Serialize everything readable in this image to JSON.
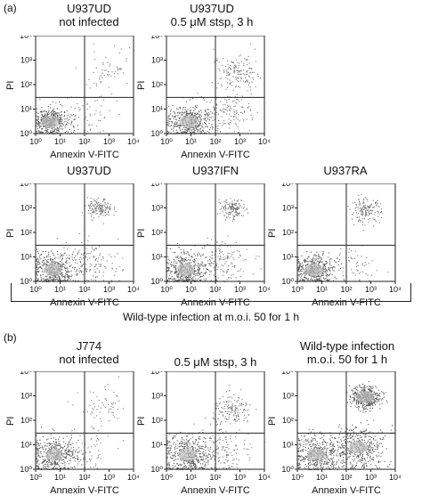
{
  "labels": {
    "panel_a": "(a)",
    "panel_b": "(b)",
    "caption_a": "Wild-type infection at m.o.i. 50 for 1 h"
  },
  "chart_data": [
    {
      "type": "scatter",
      "title": "U937UD\nnot infected",
      "xlabel": "Annexin V-FITC",
      "ylabel": "PI",
      "xscale": "log",
      "yscale": "log",
      "xlim": [
        1,
        10000
      ],
      "ylim": [
        1,
        10000
      ],
      "x_ticks": [
        "10⁰",
        "10¹",
        "10²",
        "10³",
        "10⁴"
      ],
      "y_ticks": [
        "10⁰",
        "10¹",
        "10²",
        "10³",
        "10⁴"
      ],
      "quadrant_gate": {
        "x": 100,
        "y": 30
      },
      "populations": [
        {
          "cx": 4,
          "cy": 3,
          "spread": 0.35,
          "density": "high"
        },
        {
          "cx": 800,
          "cy": 400,
          "spread": 0.6,
          "density": "low"
        },
        {
          "cx": 150,
          "cy": 5,
          "spread": 0.6,
          "density": "low"
        }
      ]
    },
    {
      "type": "scatter",
      "title": "U937UD\n0.5 μM stsp, 3 h",
      "xlabel": "Annexin V-FITC",
      "ylabel": "PI",
      "xscale": "log",
      "yscale": "log",
      "xlim": [
        1,
        10000
      ],
      "ylim": [
        1,
        10000
      ],
      "x_ticks": [
        "10⁰",
        "10¹",
        "10²",
        "10³",
        "10⁴"
      ],
      "y_ticks": [
        "10⁰",
        "10¹",
        "10²",
        "10³",
        "10⁴"
      ],
      "quadrant_gate": {
        "x": 100,
        "y": 30
      },
      "populations": [
        {
          "cx": 8,
          "cy": 3,
          "spread": 0.45,
          "density": "high"
        },
        {
          "cx": 800,
          "cy": 300,
          "spread": 0.5,
          "density": "medium"
        },
        {
          "cx": 200,
          "cy": 8,
          "spread": 0.6,
          "density": "medium"
        }
      ]
    },
    {
      "type": "scatter",
      "title": "U937UD",
      "xlabel": "Annexin V-FITC",
      "ylabel": "PI",
      "xscale": "log",
      "yscale": "log",
      "xlim": [
        1,
        10000
      ],
      "ylim": [
        1,
        10000
      ],
      "x_ticks": [
        "10⁰",
        "10¹",
        "10²",
        "10³",
        "10⁴"
      ],
      "y_ticks": [
        "10⁰",
        "10¹",
        "10²",
        "10³",
        "10⁴"
      ],
      "quadrant_gate": {
        "x": 100,
        "y": 30
      },
      "populations": [
        {
          "cx": 5,
          "cy": 3,
          "spread": 0.45,
          "density": "high"
        },
        {
          "cx": 400,
          "cy": 1000,
          "spread": 0.25,
          "density": "medium"
        },
        {
          "cx": 150,
          "cy": 6,
          "spread": 0.6,
          "density": "medium"
        }
      ]
    },
    {
      "type": "scatter",
      "title": "U937IFN",
      "xlabel": "Annexin V-FITC",
      "ylabel": "PI",
      "xscale": "log",
      "yscale": "log",
      "xlim": [
        1,
        10000
      ],
      "ylim": [
        1,
        10000
      ],
      "x_ticks": [
        "10⁰",
        "10¹",
        "10²",
        "10³",
        "10⁴"
      ],
      "y_ticks": [
        "10⁰",
        "10¹",
        "10²",
        "10³",
        "10⁴"
      ],
      "quadrant_gate": {
        "x": 100,
        "y": 30
      },
      "populations": [
        {
          "cx": 6,
          "cy": 3,
          "spread": 0.45,
          "density": "high"
        },
        {
          "cx": 500,
          "cy": 900,
          "spread": 0.25,
          "density": "medium"
        },
        {
          "cx": 200,
          "cy": 6,
          "spread": 0.55,
          "density": "medium"
        }
      ]
    },
    {
      "type": "scatter",
      "title": "U937RA",
      "xlabel": "Annexin V-FITC",
      "ylabel": "PI",
      "xscale": "log",
      "yscale": "log",
      "xlim": [
        1,
        10000
      ],
      "ylim": [
        1,
        10000
      ],
      "x_ticks": [
        "10⁰",
        "10¹",
        "10²",
        "10³",
        "10⁴"
      ],
      "y_ticks": [
        "10⁰",
        "10¹",
        "10²",
        "10³",
        "10⁴"
      ],
      "quadrant_gate": {
        "x": 100,
        "y": 30
      },
      "populations": [
        {
          "cx": 5,
          "cy": 3,
          "spread": 0.4,
          "density": "high"
        },
        {
          "cx": 600,
          "cy": 800,
          "spread": 0.3,
          "density": "medium"
        },
        {
          "cx": 200,
          "cy": 5,
          "spread": 0.55,
          "density": "low"
        }
      ]
    },
    {
      "type": "scatter",
      "title": "J774\nnot infected",
      "xlabel": "Annexin V-FITC",
      "ylabel": "PI",
      "xscale": "log",
      "yscale": "log",
      "xlim": [
        1,
        10000
      ],
      "ylim": [
        1,
        10000
      ],
      "x_ticks": [
        "10⁰",
        "10¹",
        "10²",
        "10³",
        "10⁴"
      ],
      "y_ticks": [
        "10⁰",
        "10¹",
        "10²",
        "10³",
        "10⁴"
      ],
      "quadrant_gate": {
        "x": 100,
        "y": 30
      },
      "populations": [
        {
          "cx": 6,
          "cy": 4,
          "spread": 0.5,
          "density": "high"
        },
        {
          "cx": 600,
          "cy": 300,
          "spread": 0.5,
          "density": "low"
        },
        {
          "cx": 120,
          "cy": 6,
          "spread": 0.6,
          "density": "low"
        }
      ]
    },
    {
      "type": "scatter",
      "title": "0.5 μM stsp, 3 h",
      "xlabel": "Annexin V-FITC",
      "ylabel": "PI",
      "xscale": "log",
      "yscale": "log",
      "xlim": [
        1,
        10000
      ],
      "ylim": [
        1,
        10000
      ],
      "x_ticks": [
        "10⁰",
        "10¹",
        "10²",
        "10³",
        "10⁴"
      ],
      "y_ticks": [
        "10⁰",
        "10¹",
        "10²",
        "10³",
        "10⁴"
      ],
      "quadrant_gate": {
        "x": 100,
        "y": 30
      },
      "populations": [
        {
          "cx": 7,
          "cy": 4,
          "spread": 0.5,
          "density": "high"
        },
        {
          "cx": 500,
          "cy": 250,
          "spread": 0.4,
          "density": "medium"
        },
        {
          "cx": 150,
          "cy": 6,
          "spread": 0.6,
          "density": "medium"
        }
      ]
    },
    {
      "type": "scatter",
      "title": "Wild-type infection\nm.o.i. 50 for 1 h",
      "xlabel": "Annexin V-FITC",
      "ylabel": "PI",
      "xscale": "log",
      "yscale": "log",
      "xlim": [
        1,
        10000
      ],
      "ylim": [
        1,
        10000
      ],
      "x_ticks": [
        "10⁰",
        "10¹",
        "10²",
        "10³",
        "10⁴"
      ],
      "y_ticks": [
        "10⁰",
        "10¹",
        "10²",
        "10³",
        "10⁴"
      ],
      "quadrant_gate": {
        "x": 100,
        "y": 30
      },
      "populations": [
        {
          "cx": 6,
          "cy": 4,
          "spread": 0.5,
          "density": "high"
        },
        {
          "cx": 600,
          "cy": 900,
          "spread": 0.3,
          "density": "high"
        },
        {
          "cx": 300,
          "cy": 8,
          "spread": 0.55,
          "density": "high"
        }
      ]
    }
  ]
}
